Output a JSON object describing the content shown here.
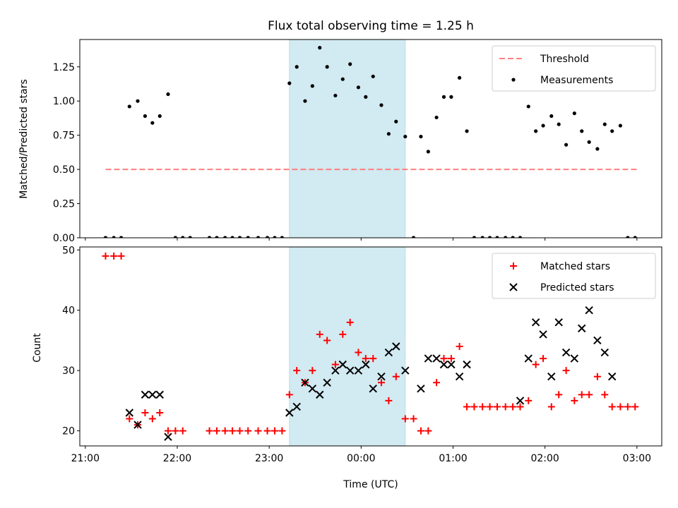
{
  "title": "Flux total observing time = 1.25 h",
  "colors": {
    "threshold": "#ff7f7f",
    "measurement": "#000000",
    "matched": "#ff0000",
    "predicted": "#000000",
    "shaded_span": "#add8e6"
  },
  "chart_data": [
    {
      "type": "scatter",
      "ylabel": "Matched/Predicted stars",
      "ylim": [
        0,
        1.45
      ],
      "yticks": [
        "0.00",
        "0.25",
        "0.50",
        "0.75",
        "1.00",
        "1.25"
      ],
      "ytick_values": [
        0,
        0.25,
        0.5,
        0.75,
        1.0,
        1.25
      ],
      "x_unit": "hours after 21:00 UTC",
      "xlim": [
        -0.06,
        6.27
      ],
      "shaded_span": [
        2.22,
        3.48
      ],
      "legend": {
        "placement": "top-right",
        "entries": [
          "Threshold",
          "Measurements"
        ]
      },
      "threshold": {
        "name": "Threshold",
        "value": 0.5,
        "x_range": [
          0.22,
          6.0
        ]
      },
      "series": [
        {
          "name": "Measurements",
          "x": [
            0.22,
            0.31,
            0.39,
            0.48,
            0.57,
            0.65,
            0.73,
            0.81,
            0.9,
            0.98,
            1.06,
            1.14,
            1.35,
            1.43,
            1.52,
            1.6,
            1.68,
            1.77,
            1.88,
            1.98,
            2.06,
            2.14,
            2.22,
            2.3,
            2.39,
            2.47,
            2.55,
            2.63,
            2.72,
            2.8,
            2.88,
            2.97,
            3.05,
            3.13,
            3.22,
            3.3,
            3.38,
            3.48,
            3.57,
            3.65,
            3.73,
            3.82,
            3.9,
            3.98,
            4.07,
            4.15,
            4.23,
            4.32,
            4.4,
            4.48,
            4.57,
            4.65,
            4.73,
            4.82,
            4.9,
            4.98,
            5.07,
            5.15,
            5.23,
            5.32,
            5.4,
            5.48,
            5.57,
            5.65,
            5.73,
            5.82,
            5.9,
            5.98
          ],
          "y": [
            0,
            0,
            0,
            0.96,
            1.0,
            0.89,
            0.84,
            0.89,
            1.05,
            0,
            0,
            0,
            0,
            0,
            0,
            0,
            0,
            0,
            0,
            0,
            0,
            0,
            1.13,
            1.25,
            1.0,
            1.11,
            1.39,
            1.25,
            1.04,
            1.16,
            1.27,
            1.1,
            1.03,
            1.18,
            0.97,
            0.76,
            0.85,
            0.74,
            0,
            0.74,
            0.63,
            0.88,
            1.03,
            1.03,
            1.17,
            0.78,
            0,
            0,
            0,
            0,
            0,
            0,
            0,
            0.96,
            0.78,
            0.82,
            0.89,
            0.83,
            0.68,
            0.91,
            0.78,
            0.7,
            0.65,
            0.83,
            0.78,
            0.82,
            0,
            0
          ]
        }
      ]
    },
    {
      "type": "scatter",
      "ylabel": "Count",
      "xlabel": "Time (UTC)",
      "ylim": [
        17.5,
        50.5
      ],
      "yticks": [
        "20",
        "30",
        "40",
        "50"
      ],
      "ytick_values": [
        20,
        30,
        40,
        50
      ],
      "xticks": [
        "21:00",
        "22:00",
        "23:00",
        "00:00",
        "01:00",
        "02:00",
        "03:00"
      ],
      "xtick_values": [
        0,
        1,
        2,
        3,
        4,
        5,
        6
      ],
      "x_unit": "hours after 21:00 UTC",
      "xlim": [
        -0.06,
        6.27
      ],
      "shaded_span": [
        2.22,
        3.48
      ],
      "legend": {
        "placement": "top-right",
        "entries": [
          "Matched stars",
          "Predicted stars"
        ]
      },
      "series": [
        {
          "name": "Matched stars",
          "x": [
            0.22,
            0.31,
            0.39,
            0.48,
            0.57,
            0.65,
            0.73,
            0.81,
            0.9,
            0.98,
            1.06,
            1.35,
            1.43,
            1.52,
            1.6,
            1.68,
            1.77,
            1.88,
            1.98,
            2.06,
            2.14,
            2.22,
            2.3,
            2.39,
            2.47,
            2.55,
            2.63,
            2.72,
            2.8,
            2.88,
            2.97,
            3.05,
            3.13,
            3.22,
            3.3,
            3.38,
            3.48,
            3.57,
            3.65,
            3.73,
            3.82,
            3.9,
            3.98,
            4.07,
            4.15,
            4.23,
            4.32,
            4.4,
            4.48,
            4.57,
            4.65,
            4.73,
            4.82,
            4.9,
            4.98,
            5.07,
            5.15,
            5.23,
            5.32,
            5.4,
            5.48,
            5.57,
            5.65,
            5.73,
            5.82,
            5.9,
            5.98
          ],
          "y": [
            49,
            49,
            49,
            22,
            21,
            23,
            22,
            23,
            20,
            20,
            20,
            20,
            20,
            20,
            20,
            20,
            20,
            20,
            20,
            20,
            20,
            26,
            30,
            28,
            30,
            36,
            35,
            31,
            36,
            38,
            33,
            32,
            32,
            28,
            25,
            29,
            22,
            22,
            20,
            20,
            28,
            32,
            32,
            34,
            24,
            24,
            24,
            24,
            24,
            24,
            24,
            24,
            25,
            31,
            32,
            24,
            26,
            30,
            25,
            26,
            26,
            29,
            26,
            24,
            24,
            24,
            24
          ]
        },
        {
          "name": "Predicted stars",
          "x": [
            0.48,
            0.57,
            0.65,
            0.73,
            0.81,
            0.9,
            2.22,
            2.3,
            2.39,
            2.47,
            2.55,
            2.63,
            2.72,
            2.8,
            2.88,
            2.97,
            3.05,
            3.13,
            3.22,
            3.3,
            3.38,
            3.48,
            3.65,
            3.73,
            3.82,
            3.9,
            3.98,
            4.07,
            4.15,
            4.73,
            4.82,
            4.9,
            4.98,
            5.07,
            5.15,
            5.23,
            5.32,
            5.4,
            5.48,
            5.57,
            5.65,
            5.73
          ],
          "y": [
            23,
            21,
            26,
            26,
            26,
            19,
            23,
            24,
            28,
            27,
            26,
            28,
            30,
            31,
            30,
            30,
            31,
            27,
            29,
            33,
            34,
            30,
            27,
            32,
            32,
            31,
            31,
            29,
            31,
            25,
            32,
            38,
            36,
            29,
            38,
            33,
            32,
            37,
            40,
            35,
            33,
            29
          ]
        }
      ]
    }
  ]
}
